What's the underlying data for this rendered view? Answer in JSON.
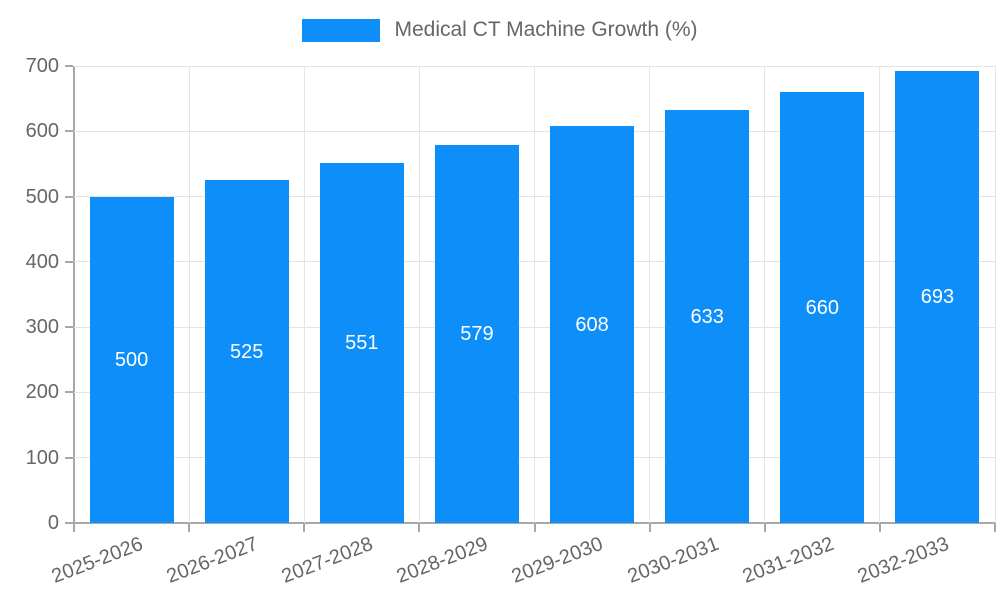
{
  "legend": {
    "position": "top",
    "swatch_color": "#0d8ef8"
  },
  "chart_data": {
    "type": "bar",
    "title": "Medical CT Machine Growth (%)",
    "categories": [
      "2025-2026",
      "2026-2027",
      "2027-2028",
      "2028-2029",
      "2029-2030",
      "2030-2031",
      "2031-2032",
      "2032-2033"
    ],
    "values": [
      500,
      525,
      551,
      579,
      608,
      633,
      660,
      693
    ],
    "xlabel": "",
    "ylabel": "",
    "ylim": [
      0,
      700
    ],
    "yticks": [
      0,
      100,
      200,
      300,
      400,
      500,
      600,
      700
    ],
    "grid": true,
    "legend_position": "top",
    "bar_color": "#0d8ef8",
    "value_label_color": "#ffffff",
    "axis_text_color": "#666666",
    "axis_line_color": "#a8a8a8",
    "gridline_color": "#e4e4e4",
    "background_color": "#ffffff"
  }
}
